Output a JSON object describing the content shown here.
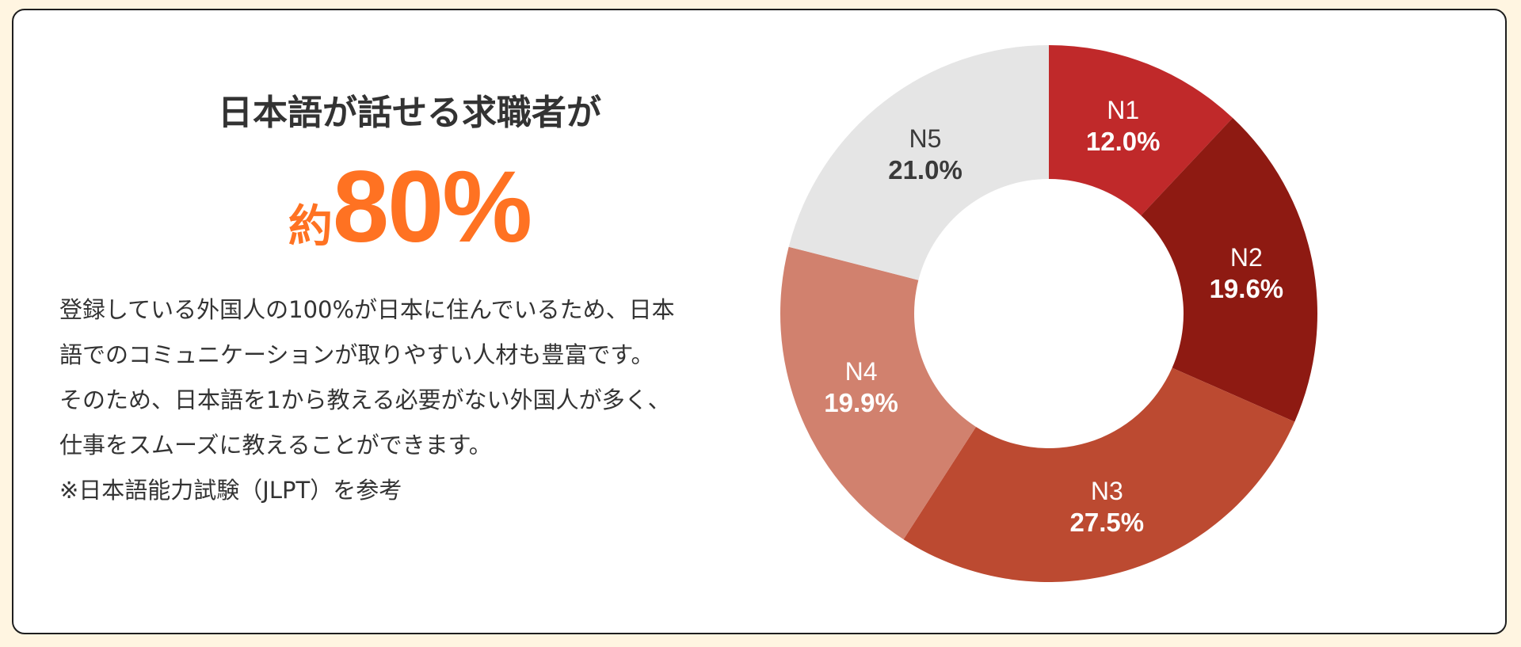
{
  "headline": "日本語が話せる求職者が",
  "stat": {
    "prefix": "約",
    "value": "80%",
    "color": "#FF7222"
  },
  "body": {
    "lines": [
      "登録している外国人の100%が日本に住んでいるため、日本",
      "語でのコミュニケーションが取りやすい人材も豊富です。",
      "そのため、日本語を1から教える必要がない外国人が多く、",
      "仕事をスムーズに教えることができます。",
      "※日本語能力試験（JLPT）を参考"
    ]
  },
  "chart_data": {
    "type": "pie",
    "subtype": "donut",
    "title": "",
    "categories": [
      "N1",
      "N2",
      "N3",
      "N4",
      "N5"
    ],
    "values": [
      12.0,
      19.6,
      27.5,
      19.9,
      21.0
    ],
    "value_labels": [
      "12.0%",
      "19.6%",
      "27.5%",
      "19.9%",
      "21.0%"
    ],
    "colors": [
      "#C0292A",
      "#8E1A12",
      "#BC4A31",
      "#D1816E",
      "#E5E5E5"
    ],
    "label_colors": [
      "#FFFFFF",
      "#FFFFFF",
      "#FFFFFF",
      "#FFFFFF",
      "#3A3A3A"
    ],
    "start_angle": "12 o'clock",
    "direction": "clockwise",
    "legend": "none (labels on slices)"
  }
}
